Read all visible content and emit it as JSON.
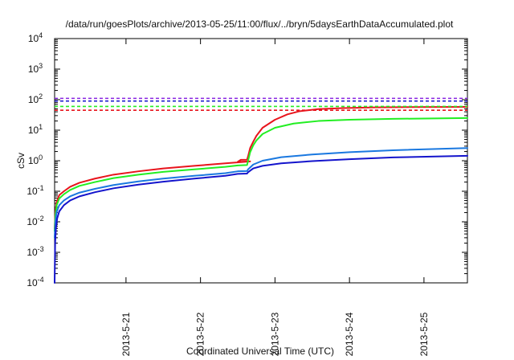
{
  "chart_data": {
    "type": "line",
    "title": "/data/run/goesPlots/archive/2013-05-25/11:00/flux/../bryn/5daysEarthDataAccumulated.plot",
    "xlabel": "Coordinated Universal Time (UTC)",
    "ylabel": "cSv",
    "y_scale": "log",
    "ylim": [
      0.0001,
      10000
    ],
    "xlim": [
      "2013-05-20 01:00",
      "2013-05-25 14:00"
    ],
    "x_ticks": [
      "2013-5-21",
      "2013-5-22",
      "2013-5-23",
      "2013-5-24",
      "2013-5-25"
    ],
    "y_ticks": [
      {
        "base": "10",
        "exp": "-4",
        "value": 0.0001
      },
      {
        "base": "10",
        "exp": "-3",
        "value": 0.001
      },
      {
        "base": "10",
        "exp": "-2",
        "value": 0.01
      },
      {
        "base": "10",
        "exp": "-1",
        "value": 0.1
      },
      {
        "base": "10",
        "exp": "0",
        "value": 1
      },
      {
        "base": "10",
        "exp": "1",
        "value": 10
      },
      {
        "base": "10",
        "exp": "2",
        "value": 100
      },
      {
        "base": "10",
        "exp": "3",
        "value": 1000
      },
      {
        "base": "10",
        "exp": "4",
        "value": 10000
      }
    ],
    "grid": false,
    "legend": "none",
    "series": [
      {
        "color": "#e8141c",
        "style": "solid",
        "points": [
          [
            "2013-05-20 01:00",
            0.006
          ],
          [
            "2013-05-20 01:15",
            0.02
          ],
          [
            "2013-05-20 01:40",
            0.045
          ],
          [
            "2013-05-20 02:30",
            0.075
          ],
          [
            "2013-05-20 04:00",
            0.1
          ],
          [
            "2013-05-20 06:00",
            0.14
          ],
          [
            "2013-05-20 09:00",
            0.19
          ],
          [
            "2013-05-20 14:00",
            0.26
          ],
          [
            "2013-05-20 20:00",
            0.35
          ],
          [
            "2013-05-21 04:00",
            0.45
          ],
          [
            "2013-05-21 12:00",
            0.56
          ],
          [
            "2013-05-21 22:00",
            0.68
          ],
          [
            "2013-05-22 08:00",
            0.82
          ],
          [
            "2013-05-22 16:00",
            0.95
          ],
          [
            "2013-05-22 12:00",
            0.92
          ],
          [
            "2013-05-22 13:00",
            1.07
          ],
          [
            "2013-05-22 15:00",
            1.08
          ],
          [
            "2013-05-22 15:20",
            1.4
          ],
          [
            "2013-05-22 16:00",
            2.6
          ],
          [
            "2013-05-22 17:00",
            4.2
          ],
          [
            "2013-05-22 18:00",
            6.5
          ],
          [
            "2013-05-22 20:00",
            12
          ],
          [
            "2013-05-23 00:00",
            22
          ],
          [
            "2013-05-23 04:00",
            33
          ],
          [
            "2013-05-23 08:00",
            42
          ],
          [
            "2013-05-23 14:00",
            49
          ],
          [
            "2013-05-23 22:00",
            53
          ],
          [
            "2013-05-24 08:00",
            56
          ],
          [
            "2013-05-24 20:00",
            57
          ],
          [
            "2013-05-25 14:00",
            58
          ]
        ]
      },
      {
        "color": "#22ee22",
        "style": "solid",
        "points": [
          [
            "2013-05-20 01:00",
            0.005
          ],
          [
            "2013-05-20 01:15",
            0.016
          ],
          [
            "2013-05-20 01:40",
            0.035
          ],
          [
            "2013-05-20 02:30",
            0.058
          ],
          [
            "2013-05-20 04:00",
            0.08
          ],
          [
            "2013-05-20 06:00",
            0.11
          ],
          [
            "2013-05-20 09:00",
            0.15
          ],
          [
            "2013-05-20 14:00",
            0.2
          ],
          [
            "2013-05-20 20:00",
            0.27
          ],
          [
            "2013-05-21 04:00",
            0.35
          ],
          [
            "2013-05-21 12:00",
            0.43
          ],
          [
            "2013-05-21 22:00",
            0.52
          ],
          [
            "2013-05-22 08:00",
            0.63
          ],
          [
            "2013-05-22 12:00",
            0.7
          ],
          [
            "2013-05-22 15:00",
            0.72
          ],
          [
            "2013-05-22 15:20",
            1.0
          ],
          [
            "2013-05-22 16:00",
            1.9
          ],
          [
            "2013-05-22 17:00",
            3.2
          ],
          [
            "2013-05-22 18:00",
            4.6
          ],
          [
            "2013-05-22 20:00",
            7.5
          ],
          [
            "2013-05-23 00:00",
            12
          ],
          [
            "2013-05-23 06:00",
            16.5
          ],
          [
            "2013-05-23 14:00",
            20
          ],
          [
            "2013-05-24 00:00",
            22
          ],
          [
            "2013-05-24 14:00",
            23.5
          ],
          [
            "2013-05-25 14:00",
            25
          ]
        ]
      },
      {
        "color": "#1a78e0",
        "style": "solid",
        "points": [
          [
            "2013-05-20 01:00",
            0.003
          ],
          [
            "2013-05-20 01:15",
            0.01
          ],
          [
            "2013-05-20 01:40",
            0.021
          ],
          [
            "2013-05-20 02:30",
            0.035
          ],
          [
            "2013-05-20 04:00",
            0.05
          ],
          [
            "2013-05-20 06:00",
            0.068
          ],
          [
            "2013-05-20 09:00",
            0.09
          ],
          [
            "2013-05-20 14:00",
            0.12
          ],
          [
            "2013-05-20 20:00",
            0.16
          ],
          [
            "2013-05-21 04:00",
            0.21
          ],
          [
            "2013-05-21 12:00",
            0.26
          ],
          [
            "2013-05-21 22:00",
            0.32
          ],
          [
            "2013-05-22 08:00",
            0.39
          ],
          [
            "2013-05-22 12:00",
            0.45
          ],
          [
            "2013-05-22 15:00",
            0.46
          ],
          [
            "2013-05-22 15:20",
            0.52
          ],
          [
            "2013-05-22 17:00",
            0.75
          ],
          [
            "2013-05-22 20:00",
            1.0
          ],
          [
            "2013-05-23 02:00",
            1.3
          ],
          [
            "2013-05-23 12:00",
            1.6
          ],
          [
            "2013-05-24 00:00",
            1.9
          ],
          [
            "2013-05-24 14:00",
            2.2
          ],
          [
            "2013-05-25 14:00",
            2.6
          ]
        ]
      },
      {
        "color": "#1414cc",
        "style": "solid",
        "points": [
          [
            "2013-05-20 01:00",
            0.0001
          ],
          [
            "2013-05-20 01:10",
            0.002
          ],
          [
            "2013-05-20 01:25",
            0.006
          ],
          [
            "2013-05-20 01:50",
            0.013
          ],
          [
            "2013-05-20 02:30",
            0.022
          ],
          [
            "2013-05-20 04:00",
            0.035
          ],
          [
            "2013-05-20 06:00",
            0.05
          ],
          [
            "2013-05-20 09:00",
            0.068
          ],
          [
            "2013-05-20 14:00",
            0.093
          ],
          [
            "2013-05-20 20:00",
            0.125
          ],
          [
            "2013-05-21 04:00",
            0.165
          ],
          [
            "2013-05-21 12:00",
            0.205
          ],
          [
            "2013-05-21 22:00",
            0.26
          ],
          [
            "2013-05-22 08:00",
            0.32
          ],
          [
            "2013-05-22 12:00",
            0.37
          ],
          [
            "2013-05-22 15:00",
            0.38
          ],
          [
            "2013-05-22 15:20",
            0.42
          ],
          [
            "2013-05-22 17:00",
            0.56
          ],
          [
            "2013-05-22 20:00",
            0.68
          ],
          [
            "2013-05-23 02:00",
            0.82
          ],
          [
            "2013-05-23 12:00",
            0.97
          ],
          [
            "2013-05-24 00:00",
            1.12
          ],
          [
            "2013-05-24 14:00",
            1.28
          ],
          [
            "2013-05-25 14:00",
            1.45
          ]
        ]
      }
    ],
    "reference_lines": [
      {
        "color": "#8a2be2",
        "style": "dashed",
        "value": 110
      },
      {
        "color": "#1414cc",
        "style": "dashed",
        "value": 90
      },
      {
        "color": "#22ee22",
        "style": "dashed",
        "value": 60
      },
      {
        "color": "#e8141c",
        "style": "dashed",
        "value": 45
      }
    ]
  }
}
